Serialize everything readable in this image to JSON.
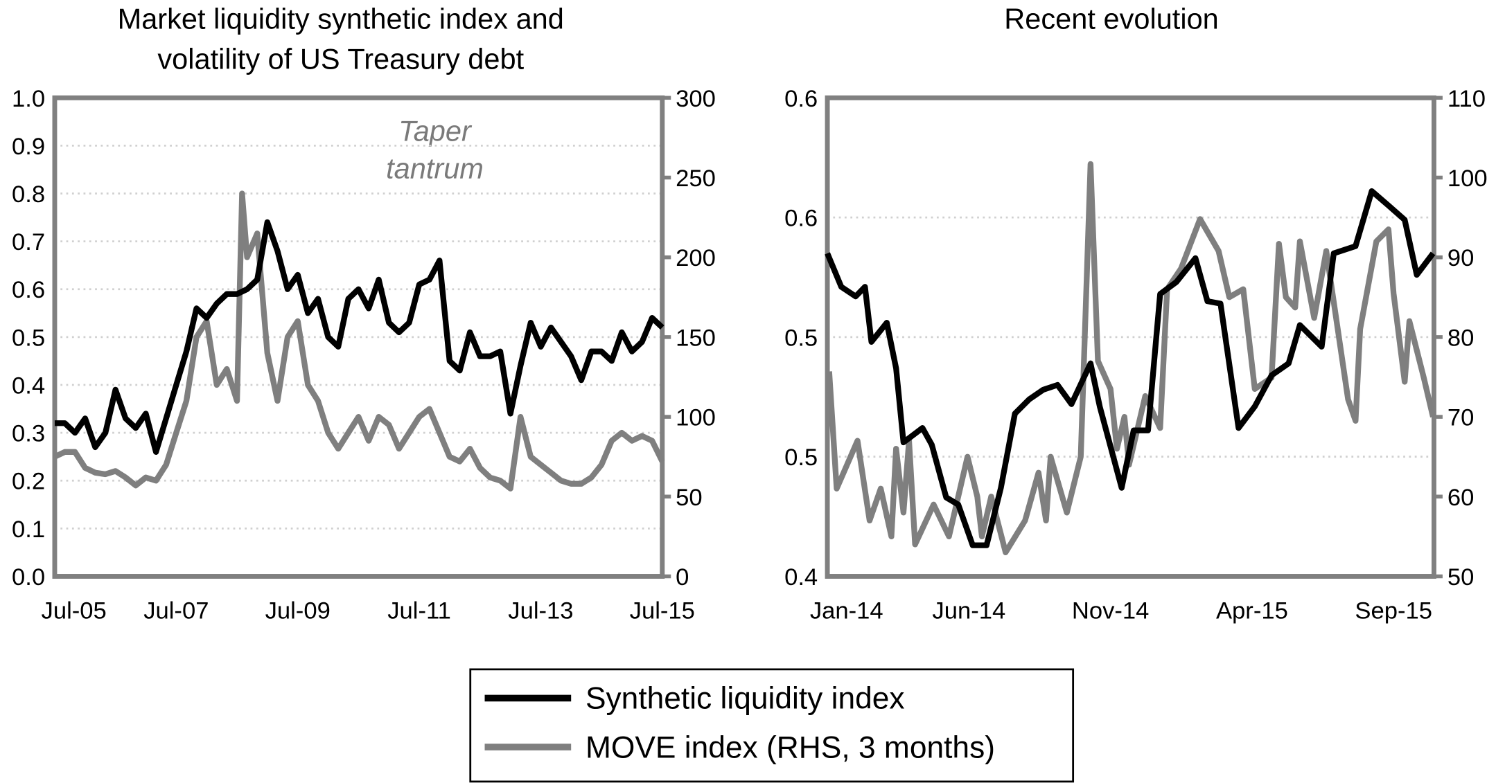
{
  "colors": {
    "liquidity": "#000000",
    "move": "#7f7f7f",
    "frame": "#808080",
    "grid": "#d0d0d0"
  },
  "legend": {
    "items": [
      {
        "label": "Synthetic liquidity index",
        "color": "#000000"
      },
      {
        "label": "MOVE index (RHS, 3 months)",
        "color": "#7f7f7f"
      }
    ],
    "placement": "bottom-center"
  },
  "chart_data": [
    {
      "type": "line",
      "title_lines": [
        "Market liquidity synthetic index and",
        "volatility of US Treasury debt"
      ],
      "annotation": [
        "Taper",
        "tantrum"
      ],
      "grid": true,
      "xlim": [
        "2005-07",
        "2015-07"
      ],
      "x_ticks": [
        {
          "value": "2005-07",
          "label": "Jul-05"
        },
        {
          "value": "2007-07",
          "label": "Jul-07"
        },
        {
          "value": "2009-07",
          "label": "Jul-09"
        },
        {
          "value": "2011-07",
          "label": "Jul-11"
        },
        {
          "value": "2013-07",
          "label": "Jul-13"
        },
        {
          "value": "2015-07",
          "label": "Jul-15"
        }
      ],
      "ylim": [
        0,
        1
      ],
      "y_ticks": [
        {
          "value": 0,
          "label": "0.0"
        },
        {
          "value": 0.1,
          "label": "0.1"
        },
        {
          "value": 0.2,
          "label": "0.2"
        },
        {
          "value": 0.3,
          "label": "0.3"
        },
        {
          "value": 0.4,
          "label": "0.4"
        },
        {
          "value": 0.5,
          "label": "0.5"
        },
        {
          "value": 0.6,
          "label": "0.6"
        },
        {
          "value": 0.7,
          "label": "0.7"
        },
        {
          "value": 0.8,
          "label": "0.8"
        },
        {
          "value": 0.9,
          "label": "0.9"
        },
        {
          "value": 1.0,
          "label": "1.0"
        }
      ],
      "y2lim": [
        0,
        300
      ],
      "y2_ticks": [
        {
          "value": 0,
          "label": "0"
        },
        {
          "value": 50,
          "label": "50"
        },
        {
          "value": 100,
          "label": "100"
        },
        {
          "value": 150,
          "label": "150"
        },
        {
          "value": 200,
          "label": "200"
        },
        {
          "value": 250,
          "label": "250"
        },
        {
          "value": 300,
          "label": "300"
        }
      ],
      "series": [
        {
          "name": "Synthetic liquidity index",
          "axis": "left",
          "color": "#000000",
          "x": [
            "2005-07",
            "2005-09",
            "2005-11",
            "2006-01",
            "2006-03",
            "2006-05",
            "2006-07",
            "2006-09",
            "2006-11",
            "2007-01",
            "2007-03",
            "2007-05",
            "2007-07",
            "2007-09",
            "2007-11",
            "2008-01",
            "2008-03",
            "2008-05",
            "2008-07",
            "2008-09",
            "2008-11",
            "2009-01",
            "2009-03",
            "2009-05",
            "2009-07",
            "2009-09",
            "2009-11",
            "2010-01",
            "2010-03",
            "2010-05",
            "2010-07",
            "2010-09",
            "2010-11",
            "2011-01",
            "2011-03",
            "2011-05",
            "2011-07",
            "2011-09",
            "2011-11",
            "2012-01",
            "2012-03",
            "2012-05",
            "2012-07",
            "2012-09",
            "2012-11",
            "2013-01",
            "2013-03",
            "2013-05",
            "2013-07",
            "2013-09",
            "2013-11",
            "2014-01",
            "2014-03",
            "2014-05",
            "2014-07",
            "2014-09",
            "2014-11",
            "2015-01",
            "2015-03",
            "2015-05",
            "2015-07"
          ],
          "y": [
            0.32,
            0.32,
            0.3,
            0.33,
            0.27,
            0.3,
            0.39,
            0.33,
            0.31,
            0.34,
            0.26,
            0.33,
            0.4,
            0.47,
            0.56,
            0.54,
            0.57,
            0.59,
            0.59,
            0.6,
            0.62,
            0.74,
            0.68,
            0.6,
            0.63,
            0.55,
            0.58,
            0.5,
            0.48,
            0.58,
            0.6,
            0.56,
            0.62,
            0.53,
            0.51,
            0.53,
            0.61,
            0.62,
            0.66,
            0.45,
            0.43,
            0.51,
            0.46,
            0.46,
            0.47,
            0.34,
            0.44,
            0.53,
            0.48,
            0.52,
            0.49,
            0.46,
            0.41,
            0.47,
            0.47,
            0.45,
            0.51,
            0.47,
            0.49,
            0.54,
            0.52
          ]
        },
        {
          "name": "MOVE index (RHS, 3 months)",
          "axis": "right",
          "color": "#7f7f7f",
          "x": [
            "2005-07",
            "2005-09",
            "2005-11",
            "2006-01",
            "2006-03",
            "2006-05",
            "2006-07",
            "2006-09",
            "2006-11",
            "2007-01",
            "2007-03",
            "2007-05",
            "2007-07",
            "2007-09",
            "2007-11",
            "2008-01",
            "2008-03",
            "2008-05",
            "2008-07",
            "2008-08",
            "2008-09",
            "2008-11",
            "2009-01",
            "2009-03",
            "2009-05",
            "2009-07",
            "2009-09",
            "2009-11",
            "2010-01",
            "2010-03",
            "2010-05",
            "2010-07",
            "2010-09",
            "2010-11",
            "2011-01",
            "2011-03",
            "2011-05",
            "2011-07",
            "2011-09",
            "2011-11",
            "2012-01",
            "2012-03",
            "2012-05",
            "2012-07",
            "2012-09",
            "2012-11",
            "2013-01",
            "2013-03",
            "2013-05",
            "2013-07",
            "2013-09",
            "2013-11",
            "2014-01",
            "2014-03",
            "2014-05",
            "2014-07",
            "2014-09",
            "2014-11",
            "2015-01",
            "2015-03",
            "2015-05",
            "2015-07"
          ],
          "y": [
            75,
            78,
            78,
            68,
            65,
            64,
            66,
            62,
            57,
            62,
            60,
            70,
            90,
            110,
            150,
            160,
            120,
            130,
            110,
            240,
            200,
            215,
            140,
            110,
            150,
            160,
            120,
            110,
            90,
            80,
            90,
            100,
            85,
            100,
            95,
            80,
            90,
            100,
            105,
            90,
            75,
            72,
            80,
            68,
            62,
            60,
            55,
            100,
            75,
            70,
            65,
            60,
            58,
            58,
            62,
            70,
            85,
            90,
            85,
            88,
            85,
            72
          ]
        }
      ]
    },
    {
      "type": "line",
      "title_lines": [
        "Recent evolution"
      ],
      "grid": true,
      "xlim": [
        "2014-01-01",
        "2015-10-14"
      ],
      "x_ticks": [
        {
          "value": "2014-01-01",
          "label": "Jan-14"
        },
        {
          "value": "2014-06-01",
          "label": "Jun-14"
        },
        {
          "value": "2014-11-01",
          "label": "Nov-14"
        },
        {
          "value": "2015-04-01",
          "label": "Apr-15"
        },
        {
          "value": "2015-09-01",
          "label": "Sep-15"
        }
      ],
      "ylim": [
        0.4,
        0.6
      ],
      "y_ticks": [
        {
          "value": 0.4,
          "label": "0.4"
        },
        {
          "value": 0.45,
          "label": "0.5"
        },
        {
          "value": 0.5,
          "label": "0.5"
        },
        {
          "value": 0.55,
          "label": "0.6"
        },
        {
          "value": 0.6,
          "label": "0.6"
        }
      ],
      "y2lim": [
        50,
        110
      ],
      "y2_ticks": [
        {
          "value": 50,
          "label": "50"
        },
        {
          "value": 60,
          "label": "60"
        },
        {
          "value": 70,
          "label": "70"
        },
        {
          "value": 80,
          "label": "80"
        },
        {
          "value": 90,
          "label": "90"
        },
        {
          "value": 100,
          "label": "100"
        },
        {
          "value": 110,
          "label": "110"
        }
      ],
      "series": [
        {
          "name": "Synthetic liquidity index",
          "axis": "left",
          "color": "#000000",
          "x": [
            "2014-01-01",
            "2014-01-16",
            "2014-02-01",
            "2014-02-11",
            "2014-02-18",
            "2014-03-04",
            "2014-03-14",
            "2014-03-22",
            "2014-04-12",
            "2014-04-22",
            "2014-05-07",
            "2014-05-20",
            "2014-06-05",
            "2014-06-20",
            "2014-07-05",
            "2014-07-20",
            "2014-08-05",
            "2014-08-20",
            "2014-09-05",
            "2014-09-20",
            "2014-10-10",
            "2014-10-20",
            "2014-11-13",
            "2014-11-26",
            "2014-12-11",
            "2014-12-24",
            "2015-01-11",
            "2015-02-01",
            "2015-02-14",
            "2015-02-28",
            "2015-03-17",
            "2015-04-04",
            "2015-04-22",
            "2015-05-10",
            "2015-05-22",
            "2015-06-15",
            "2015-06-28",
            "2015-07-21",
            "2015-08-08",
            "2015-08-26",
            "2015-09-13",
            "2015-09-26",
            "2015-10-13"
          ],
          "y": [
            0.535,
            0.521,
            0.517,
            0.521,
            0.498,
            0.506,
            0.487,
            0.456,
            0.462,
            0.455,
            0.433,
            0.43,
            0.413,
            0.413,
            0.437,
            0.468,
            0.474,
            0.478,
            0.48,
            0.472,
            0.489,
            0.471,
            0.437,
            0.461,
            0.461,
            0.518,
            0.523,
            0.533,
            0.515,
            0.514,
            0.462,
            0.471,
            0.484,
            0.489,
            0.505,
            0.496,
            0.535,
            0.538,
            0.561,
            0.555,
            0.549,
            0.526,
            0.535
          ]
        },
        {
          "name": "MOVE index (RHS, 3 months)",
          "axis": "right",
          "color": "#7f7f7f",
          "x": [
            "2014-01-03",
            "2014-01-11",
            "2014-02-03",
            "2014-02-16",
            "2014-02-28",
            "2014-03-09",
            "2014-03-14",
            "2014-03-22",
            "2014-03-28",
            "2014-04-04",
            "2014-04-24",
            "2014-05-10",
            "2014-05-30",
            "2014-06-10",
            "2014-06-15",
            "2014-06-25",
            "2014-07-10",
            "2014-07-31",
            "2014-08-15",
            "2014-08-23",
            "2014-08-28",
            "2014-09-15",
            "2014-09-30",
            "2014-10-10",
            "2014-10-18",
            "2014-11-01",
            "2014-11-08",
            "2014-11-16",
            "2014-11-21",
            "2014-12-08",
            "2014-12-24",
            "2015-01-01",
            "2015-01-16",
            "2015-02-06",
            "2015-02-26",
            "2015-03-07",
            "2015-03-22",
            "2015-04-04",
            "2015-04-22",
            "2015-04-30",
            "2015-05-07",
            "2015-05-17",
            "2015-05-22",
            "2015-06-07",
            "2015-06-20",
            "2015-07-13",
            "2015-07-21",
            "2015-07-26",
            "2015-08-13",
            "2015-08-26",
            "2015-09-01",
            "2015-09-13",
            "2015-09-18",
            "2015-10-03",
            "2015-10-13"
          ],
          "y": [
            75.7,
            61,
            67,
            57,
            61,
            55,
            66,
            58,
            67,
            54,
            59,
            55,
            65,
            60,
            55,
            60,
            53,
            57,
            63,
            57,
            65,
            58,
            65,
            101.7,
            77,
            73.5,
            66,
            70,
            64,
            72.6,
            68.6,
            86,
            88.6,
            94.8,
            90.8,
            85,
            86,
            73.5,
            74.9,
            91.7,
            85,
            83.7,
            92,
            82.4,
            90.8,
            72.2,
            69.5,
            81,
            92,
            93.5,
            85.5,
            74.4,
            82,
            74.9,
            70
          ]
        }
      ]
    }
  ]
}
